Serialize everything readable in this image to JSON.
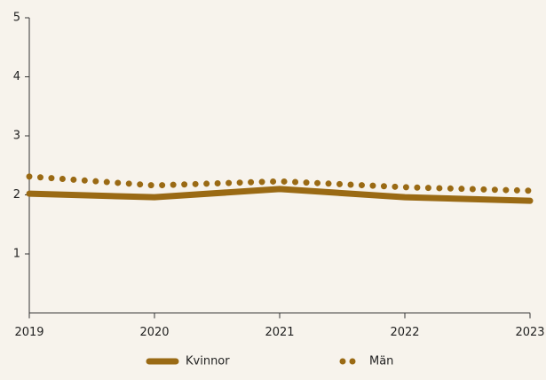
{
  "chart_data": {
    "type": "line",
    "x": [
      2019,
      2020,
      2021,
      2022,
      2023
    ],
    "xlim": [
      2019,
      2023
    ],
    "xticks": [
      2019,
      2020,
      2021,
      2022,
      2023
    ],
    "ylim": [
      0,
      5
    ],
    "yticks": [
      1,
      2,
      3,
      4,
      5
    ],
    "series": [
      {
        "name": "Kvinnor",
        "color": "#9a6a14",
        "style": "solid",
        "values": [
          2.02,
          1.96,
          2.1,
          1.96,
          1.9
        ]
      },
      {
        "name": "Män",
        "color": "#9a6a14",
        "style": "dotted",
        "values": [
          2.31,
          2.16,
          2.23,
          2.13,
          2.07
        ]
      }
    ],
    "legend": "bottom"
  }
}
